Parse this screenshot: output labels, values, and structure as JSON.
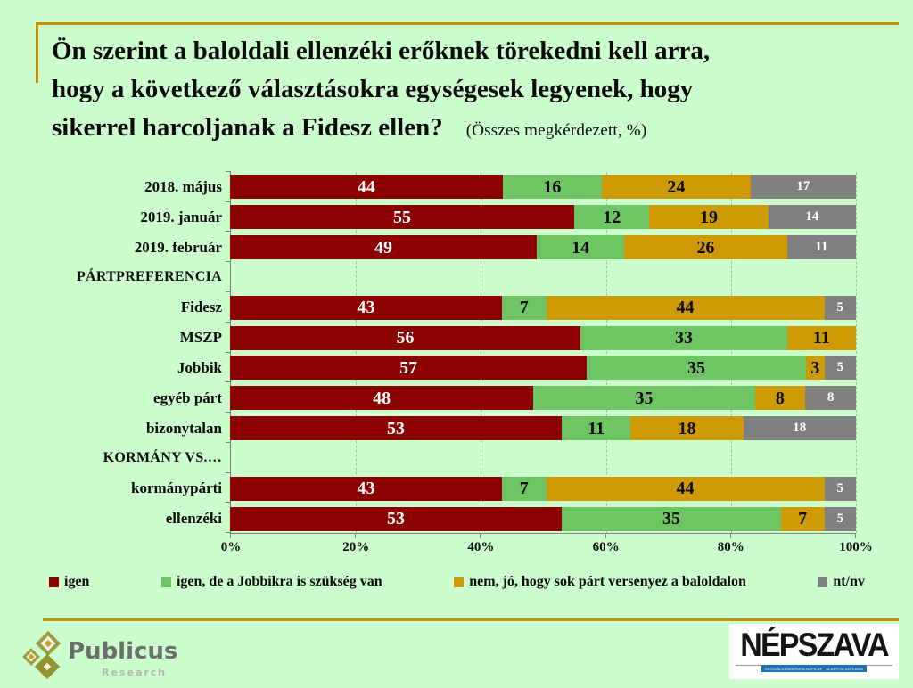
{
  "colors": {
    "background": "#ccfdcc",
    "accent_line": "#c49200",
    "axis": "#808080",
    "gridline": "#a7b9a7",
    "series": [
      "#8b0000",
      "#6fc463",
      "#cf9b05",
      "#808080"
    ],
    "series_label_colors": [
      "#ffffff",
      "#0a0a0a",
      "#0a0a0a",
      "#ffffff"
    ]
  },
  "title": {
    "line1": "Ön szerint a baloldali ellenzéki erőknek törekedni kell arra,",
    "line2": "hogy a következő választásokra egységesek legyenek, hogy",
    "line3": "sikerrel harcoljanak a Fidesz ellen?",
    "note": "(Összes megkérdezett, %)"
  },
  "chart_data": {
    "type": "bar",
    "stacked": true,
    "orientation": "horizontal",
    "xlim": [
      0,
      100
    ],
    "x_ticks": [
      0,
      20,
      40,
      60,
      80,
      100
    ],
    "x_tick_labels": [
      "0%",
      "20%",
      "40%",
      "60%",
      "80%",
      "100%"
    ],
    "grid": "dashed-vertical",
    "legend_position": "bottom",
    "series_names": [
      "igen",
      "igen, de a Jobbikra is szükség van",
      "nem, jó, hogy sok párt versenyez a baloldalon",
      "nt/nv"
    ],
    "rows": [
      {
        "label": "2018. május",
        "header": false,
        "values": [
          44,
          16,
          24,
          17
        ]
      },
      {
        "label": "2019. január",
        "header": false,
        "values": [
          55,
          12,
          19,
          14
        ]
      },
      {
        "label": "2019. február",
        "header": false,
        "values": [
          49,
          14,
          26,
          11
        ]
      },
      {
        "label": "PÁRTPREFERENCIA",
        "header": true,
        "values": null
      },
      {
        "label": "Fidesz",
        "header": false,
        "values": [
          43,
          7,
          44,
          5
        ]
      },
      {
        "label": "MSZP",
        "header": false,
        "values": [
          56,
          33,
          11,
          0
        ]
      },
      {
        "label": "Jobbik",
        "header": false,
        "values": [
          57,
          35,
          3,
          5
        ]
      },
      {
        "label": "egyéb párt",
        "header": false,
        "values": [
          48,
          35,
          8,
          8
        ]
      },
      {
        "label": "bizonytalan",
        "header": false,
        "values": [
          53,
          11,
          18,
          18
        ]
      },
      {
        "label": "KORMÁNY VS.…",
        "header": true,
        "values": null
      },
      {
        "label": "kormánypárti",
        "header": false,
        "values": [
          43,
          7,
          44,
          5
        ]
      },
      {
        "label": "ellenzéki",
        "header": false,
        "values": [
          53,
          35,
          7,
          5
        ]
      }
    ]
  },
  "legend": [
    {
      "label": "igen",
      "color": "#8b0000"
    },
    {
      "label": "igen, de a Jobbikra is szükség van",
      "color": "#6fc463"
    },
    {
      "label": "nem, jó, hogy sok párt versenyez a baloldalon",
      "color": "#cf9b05"
    },
    {
      "label": "nt/nv",
      "color": "#808080"
    }
  ],
  "footer": {
    "publicus": {
      "name": "Publicus",
      "sub": "Research"
    },
    "nepszava": {
      "name": "NÉPSZAVA",
      "tagline_left": "SZOCIÁLDEMOKRATA NAPILAP",
      "tagline_right": "ALAPÍTVA 1873-BAN"
    }
  }
}
